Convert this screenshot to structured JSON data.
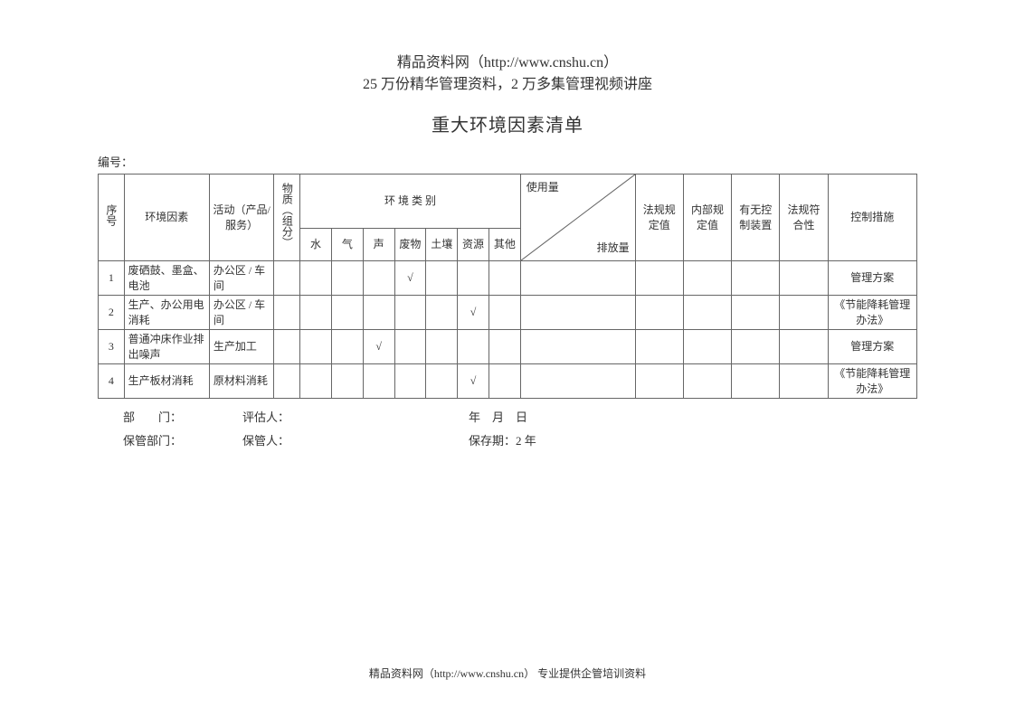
{
  "header": {
    "line1": "精品资料网（http://www.cnshu.cn）",
    "line2": "25 万份精华管理资料，2 万多集管理视频讲座"
  },
  "title": "重大环境因素清单",
  "serial_label": "编号：",
  "columns": {
    "no": "序号",
    "factor": "环境因素",
    "activity": "活动（产品/服务）",
    "material": "物质（组分）",
    "env_group": "环 境 类 别",
    "env": {
      "water": "水",
      "air": "气",
      "sound": "声",
      "waste": "废物",
      "soil": "土壤",
      "resource": "资源",
      "other": "其他"
    },
    "usage": "使用量",
    "emission": "排放量",
    "reg_value": "法规规定值",
    "int_value": "内部规定值",
    "has_ctrl": "有无控制装置",
    "compliance": "法规符合性",
    "measure": "控制措施"
  },
  "check": "√",
  "rows": [
    {
      "no": "1",
      "factor": "废硒鼓、墨盒、电池",
      "activity": "办公区 / 车间",
      "env": {
        "waste": true
      },
      "measure": "管理方案"
    },
    {
      "no": "2",
      "factor": "生产、办公用电消耗",
      "activity": "办公区 / 车间",
      "env": {
        "resource": true
      },
      "measure": "《节能降耗管理办法》"
    },
    {
      "no": "3",
      "factor": "普通冲床作业排出噪声",
      "activity": "生产加工",
      "env": {
        "sound": true
      },
      "measure": "管理方案"
    },
    {
      "no": "4",
      "factor": "生产板材消耗",
      "activity": "原材料消耗",
      "env": {
        "resource": true
      },
      "measure": "《节能降耗管理办法》"
    }
  ],
  "footer": {
    "dept": "部　　门：",
    "assessor": "评估人：",
    "date": "年　月　日",
    "keeper_dept": "保管部门：",
    "keeper": "保管人：",
    "period": "保存期：2 年"
  },
  "bottom": "精品资料网（http://www.cnshu.cn） 专业提供企管培训资料"
}
